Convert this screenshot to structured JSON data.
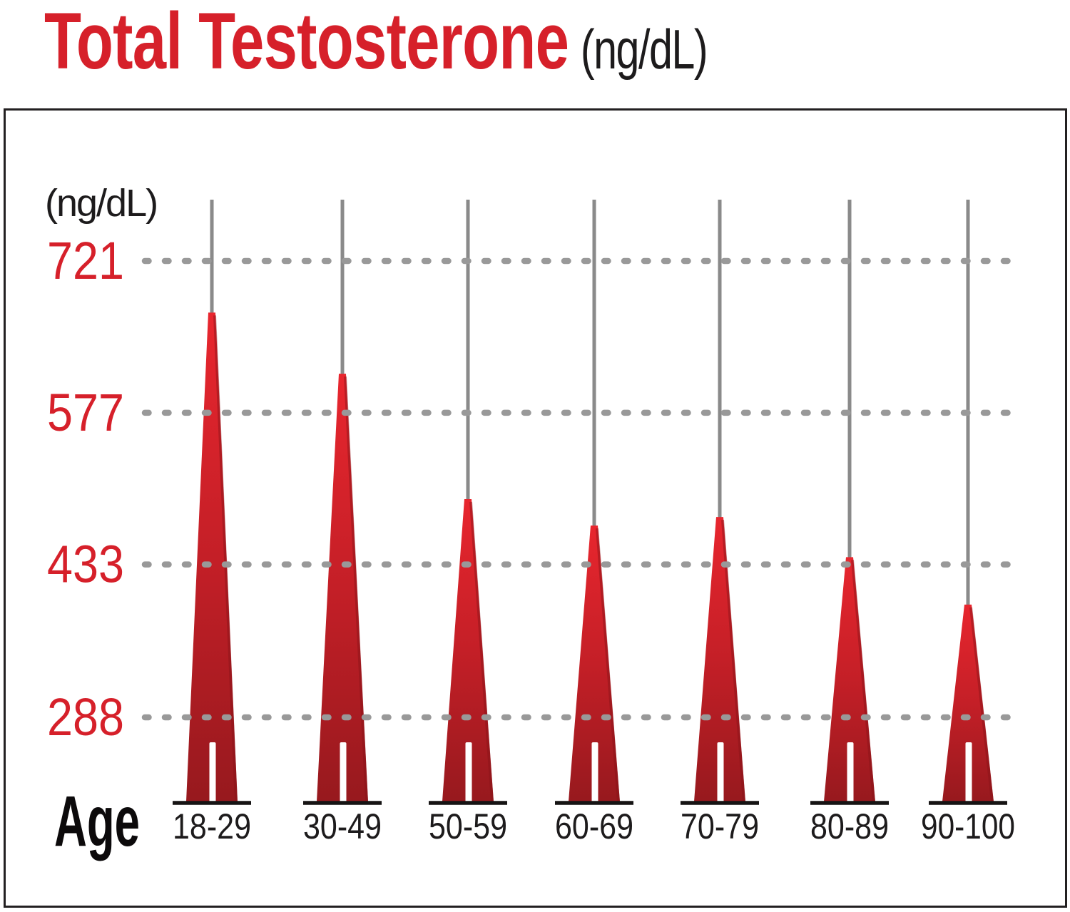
{
  "header": {
    "title": "Total Testosterone",
    "unit": "(ng/dL)"
  },
  "chart_data": {
    "type": "bar",
    "style": "red gradient spike/peak columns with gray stem guides",
    "title": "Total Testosterone",
    "title_unit": "(ng/dL)",
    "y_axis_unit_label": "(ng/dL)",
    "x_axis_label": "Age",
    "categories": [
      "18-29",
      "30-49",
      "50-59",
      "60-69",
      "70-79",
      "80-89",
      "90-100"
    ],
    "values": [
      672,
      614,
      495,
      470,
      478,
      440,
      395
    ],
    "ytick_labels": [
      "721",
      "577",
      "433",
      "288"
    ],
    "ytick_values": [
      721,
      577,
      433,
      288
    ],
    "ylim": [
      205,
      780
    ],
    "grid": "dotted horizontal gridlines at each y tick",
    "legend": "none",
    "colors": {
      "accent_red": "#d6202a",
      "spike_top": "#e8262e",
      "spike_mid": "#c41f27",
      "spike_bottom": "#97191e",
      "grid_dot_gray": "#999999",
      "stem_gray": "#8a8a8a",
      "text_black": "#1d1b1c",
      "baseline_black": "#161414"
    }
  }
}
